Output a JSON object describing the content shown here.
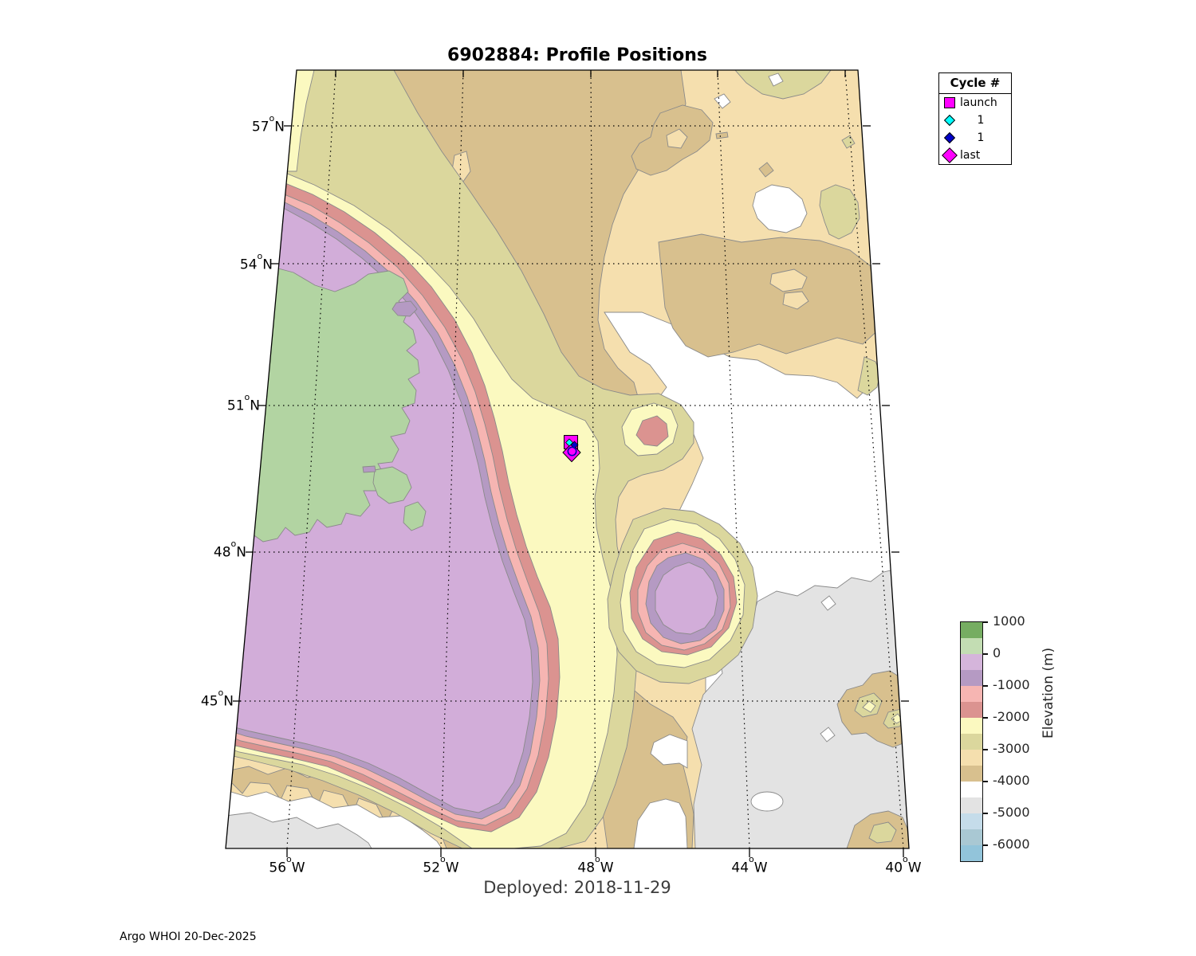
{
  "figure": {
    "title": "6902884: Profile Positions",
    "subtitle": "Deployed: 2018-11-29",
    "credit": "Argo WHOI 20-Dec-2025"
  },
  "legend": {
    "title": "Cycle #",
    "items": [
      {
        "label": "launch",
        "marker": "filled-square",
        "color": "#ff00ff"
      },
      {
        "label": "1",
        "marker": "small-diamond",
        "color": "#00ffff"
      },
      {
        "label": "1",
        "marker": "small-diamond",
        "color": "#0000c8"
      },
      {
        "label": "last",
        "marker": "large-diamond",
        "color": "#ff00ff"
      }
    ]
  },
  "axes": {
    "degree_symbol": "o",
    "lat_ticks": [
      {
        "value": "57",
        "hemisphere": "N"
      },
      {
        "value": "54",
        "hemisphere": "N"
      },
      {
        "value": "51",
        "hemisphere": "N"
      },
      {
        "value": "48",
        "hemisphere": "N"
      },
      {
        "value": "45",
        "hemisphere": "N"
      }
    ],
    "lon_ticks": [
      {
        "value": "56",
        "hemisphere": "W"
      },
      {
        "value": "52",
        "hemisphere": "W"
      },
      {
        "value": "48",
        "hemisphere": "W"
      },
      {
        "value": "44",
        "hemisphere": "W"
      },
      {
        "value": "40",
        "hemisphere": "W"
      }
    ]
  },
  "colorbar": {
    "label": "Elevation (m)",
    "ticks": [
      "1000",
      "0",
      "-1000",
      "-2000",
      "-3000",
      "-4000",
      "-5000",
      "-6000"
    ],
    "bands": [
      {
        "range": "1000..500",
        "color": "#76ad62"
      },
      {
        "range": "500..0",
        "color": "#c3ddb3"
      },
      {
        "range": "0..-500",
        "color": "#d5b5db"
      },
      {
        "range": "-500..-1000",
        "color": "#b59ac3"
      },
      {
        "range": "-1000..-1500",
        "color": "#f6b5b2"
      },
      {
        "range": "-1500..-2000",
        "color": "#db9390"
      },
      {
        "range": "-2000..-2500",
        "color": "#fbf9c0"
      },
      {
        "range": "-2500..-3000",
        "color": "#dbd79d"
      },
      {
        "range": "-3000..-3500",
        "color": "#f5dfae"
      },
      {
        "range": "-3500..-4000",
        "color": "#d8c08e"
      },
      {
        "range": "-4000..-4500",
        "color": "#ffffff"
      },
      {
        "range": "-4500..-5000",
        "color": "#e3e3e3"
      },
      {
        "range": "-5000..-5500",
        "color": "#c5dcea"
      },
      {
        "range": "-5500..-6000",
        "color": "#a9c8d3"
      },
      {
        "range": "-6000..-6500",
        "color": "#92c4da"
      }
    ]
  },
  "chart_data": {
    "type": "map",
    "title": "6902884: Profile Positions",
    "subtitle": "Deployed: 2018-11-29",
    "projection": "conic-style; meridians converge northward; map outline is a trapezoid",
    "lon_ticks_deg": [
      "56W",
      "52W",
      "48W",
      "44W",
      "40W"
    ],
    "lat_ticks_deg": [
      "57N",
      "54N",
      "51N",
      "48N",
      "45N"
    ],
    "grid": "dotted black graticule",
    "legend_title": "Cycle #",
    "markers": [
      {
        "label": "launch",
        "marker": "filled square",
        "color": "#ff00ff",
        "approx_position": {
          "lat_n": 50.2,
          "lon_w": 48.6
        }
      },
      {
        "label": "1",
        "marker": "small diamond",
        "color": "#00ffff",
        "approx_position": {
          "lat_n": 50.2,
          "lon_w": 48.7
        }
      },
      {
        "label": "1",
        "marker": "small diamond + open circle",
        "color": "#0000c8",
        "approx_position": {
          "lat_n": 50.1,
          "lon_w": 48.6
        }
      },
      {
        "label": "last",
        "marker": "large diamond",
        "color": "#ff00ff",
        "approx_position": {
          "lat_n": 50.1,
          "lon_w": 48.6
        }
      }
    ],
    "colorbar": {
      "label": "Elevation (m)",
      "tick_values_m": [
        1000,
        0,
        -1000,
        -2000,
        -3000,
        -4000,
        -5000,
        -6000
      ],
      "band_step_m": 500,
      "range_m": [
        -6500,
        1000
      ]
    },
    "map_features": [
      "large lilac basin (0..-1000 m colors) in center-left ringed by purple/pink bands",
      "green land mass with jagged coastline along left edge between 54N and 46N",
      "pale-yellow contour band running NNE-SSW through float position near 48.5W",
      "tan shelf (-3000..-4000 m colors) across the top and center-right with white/grey deeps",
      "ringed seamount feature centered near 46.7N 46W",
      "white and grey (-4000..-5000 m colors) region in lower right with tan island cluster",
      "banded jagged slope contours in lower-left corner"
    ]
  },
  "palette": {
    "light_tan": "#f5dfae",
    "dark_tan": "#d8c08e",
    "khaki": "#dbd79d",
    "light_yellow": "#fbf9c0",
    "dark_pink": "#db9390",
    "light_pink": "#f6b5b2",
    "dark_purple": "#b59ac3",
    "light_purple": "#d2add9",
    "green_land": "#b2d4a2",
    "white_deep": "#ffffff",
    "grey_deep": "#e3e3e3",
    "contour_line": "#8a8a8a",
    "marker_magenta": "#ff00ff",
    "marker_cyan": "#00ffff",
    "marker_blue": "#0000c8"
  }
}
